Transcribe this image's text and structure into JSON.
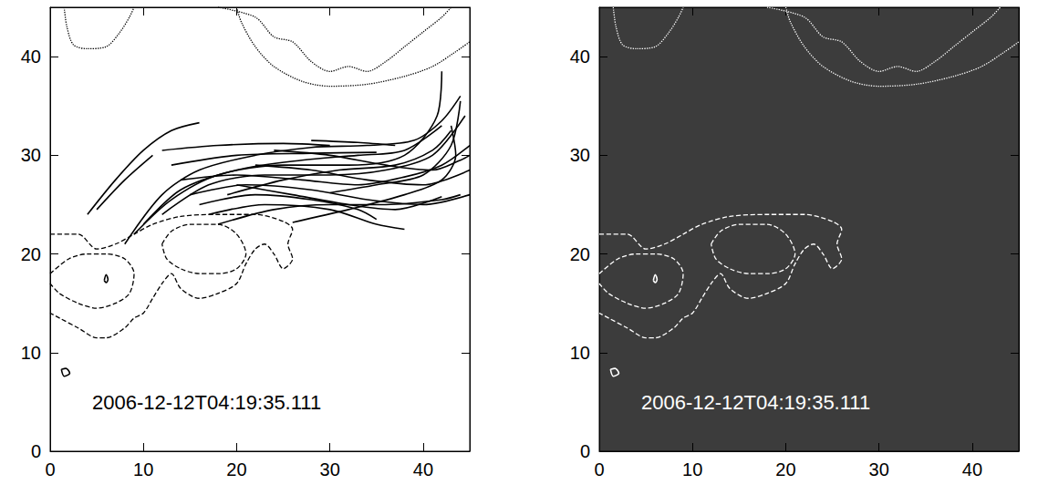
{
  "chart_data": [
    {
      "type": "line",
      "annotation": "2006-12-12T04:19:35.111",
      "xlim": [
        0,
        45
      ],
      "ylim": [
        0,
        45
      ],
      "xticks": [
        0,
        10,
        20,
        30,
        40
      ],
      "yticks": [
        0,
        10,
        20,
        30,
        40
      ],
      "series": [
        {
          "line_style": "dotted",
          "color": "#000000",
          "x": [
            1.5,
            1.8,
            2.5,
            4,
            6,
            7.5,
            8.5,
            9
          ],
          "values": [
            45,
            43,
            41.2,
            40.8,
            41,
            42.5,
            44,
            45
          ]
        },
        {
          "line_style": "dotted",
          "color": "#000000",
          "x": [
            20,
            20.5,
            22,
            24,
            27,
            30,
            34,
            38,
            41,
            43.5,
            45
          ],
          "values": [
            45,
            43.5,
            41,
            39,
            37.5,
            37,
            37.2,
            38,
            39,
            40.5,
            41.5
          ]
        },
        {
          "line_style": "dotted",
          "color": "#000000",
          "x": [
            18,
            22,
            24,
            26,
            28,
            30,
            32,
            34,
            36,
            38,
            40,
            42,
            43
          ],
          "values": [
            45,
            44,
            42,
            41.5,
            39.5,
            38.5,
            39,
            38.5,
            39.5,
            41,
            42.5,
            44,
            45
          ]
        },
        {
          "line_style": "dashed",
          "color": "#000000",
          "x": [
            0,
            3,
            5,
            7,
            9,
            11,
            14,
            18,
            22,
            25,
            26,
            25.5,
            26,
            25,
            24,
            23,
            22,
            21,
            20,
            18,
            16,
            14,
            13,
            12,
            11,
            10,
            9,
            8,
            6,
            5,
            3,
            1,
            0
          ],
          "values": [
            22,
            22,
            20.5,
            21,
            22,
            23,
            23.8,
            24,
            24,
            23.3,
            22.5,
            21,
            19.5,
            18.5,
            20,
            21,
            20.5,
            19,
            17,
            16,
            15.5,
            16.5,
            18,
            17,
            15.5,
            14,
            13.5,
            12.5,
            11.5,
            11.5,
            12.5,
            13.5,
            14
          ]
        },
        {
          "line_style": "dashed",
          "color": "#000000",
          "x": [
            12,
            13,
            15,
            18,
            20,
            21,
            20,
            18,
            16,
            14,
            12.5,
            12
          ],
          "values": [
            21,
            22.3,
            23,
            23,
            22,
            20,
            18.5,
            18,
            18,
            18.5,
            19.5,
            21
          ]
        },
        {
          "line_style": "dashed",
          "color": "#000000",
          "x": [
            0,
            2,
            4,
            6,
            8,
            9,
            8.5,
            7,
            5,
            3,
            1,
            0
          ],
          "values": [
            18,
            19.5,
            20,
            20,
            19.5,
            18,
            16,
            15,
            14.5,
            15,
            16,
            17
          ]
        },
        {
          "line_style": "solid",
          "color": "#000000",
          "x": [
            1.2,
            1.5,
            2.1,
            1.7,
            1.2
          ],
          "values": [
            8.3,
            7.6,
            7.9,
            8.4,
            8.3
          ]
        },
        {
          "line_style": "solid",
          "color": "#000000",
          "x": [
            5.8,
            6,
            6.2,
            6,
            5.8
          ],
          "values": [
            17.3,
            17.9,
            17.4,
            17.1,
            17.3
          ]
        },
        {
          "line_style": "solid",
          "color": "#000000",
          "x": [
            4,
            7,
            10,
            13,
            16
          ],
          "values": [
            24,
            27.5,
            30.5,
            32.5,
            33.3
          ]
        },
        {
          "line_style": "solid",
          "color": "#000000",
          "x": [
            5,
            8,
            11
          ],
          "values": [
            24.5,
            27.5,
            30
          ]
        },
        {
          "line_style": "solid",
          "color": "#000000",
          "x": [
            8,
            12,
            16,
            22,
            28,
            34,
            39,
            42,
            44
          ],
          "values": [
            21,
            26,
            28.5,
            30,
            30.8,
            31,
            31.5,
            33.5,
            36
          ]
        },
        {
          "line_style": "solid",
          "color": "#000000",
          "x": [
            9,
            13,
            18,
            25,
            32,
            38,
            41.5,
            42
          ],
          "values": [
            22,
            25.5,
            28,
            29,
            29,
            30,
            34,
            38.5
          ]
        },
        {
          "line_style": "solid",
          "color": "#000000",
          "x": [
            10,
            14,
            20,
            27,
            33,
            38,
            42
          ],
          "values": [
            23,
            26.5,
            28.5,
            29.5,
            30,
            30.5,
            33
          ]
        },
        {
          "line_style": "solid",
          "color": "#000000",
          "x": [
            12,
            17,
            23,
            30,
            36,
            41,
            44.5
          ],
          "values": [
            24,
            27,
            28,
            28,
            28.5,
            30,
            34
          ]
        },
        {
          "line_style": "solid",
          "color": "#000000",
          "x": [
            12,
            18,
            25,
            30
          ],
          "values": [
            30.5,
            31,
            31.2,
            31
          ]
        },
        {
          "line_style": "solid",
          "color": "#000000",
          "x": [
            13,
            20,
            28,
            35
          ],
          "values": [
            29,
            30,
            30.2,
            30.3
          ]
        },
        {
          "line_style": "solid",
          "color": "#000000",
          "x": [
            14,
            20,
            27,
            33,
            38,
            42,
            45
          ],
          "values": [
            27.5,
            28,
            27.5,
            27,
            27.8,
            29,
            31
          ]
        },
        {
          "line_style": "solid",
          "color": "#000000",
          "x": [
            15,
            21,
            28,
            34,
            40,
            45
          ],
          "values": [
            26,
            27,
            26.5,
            25.5,
            25,
            26
          ]
        },
        {
          "line_style": "solid",
          "color": "#000000",
          "x": [
            16,
            22,
            28,
            33,
            35
          ],
          "values": [
            25,
            26,
            25.5,
            24.5,
            23.5
          ]
        },
        {
          "line_style": "solid",
          "color": "#000000",
          "x": [
            17,
            23,
            30,
            35,
            38
          ],
          "values": [
            24,
            25,
            24.5,
            23,
            22.5
          ]
        },
        {
          "line_style": "solid",
          "color": "#000000",
          "x": [
            18,
            24,
            30,
            36,
            42,
            44
          ],
          "values": [
            23,
            24.5,
            25,
            25,
            25.5,
            26
          ]
        },
        {
          "line_style": "solid",
          "color": "#000000",
          "x": [
            20,
            26,
            32,
            37,
            42
          ],
          "values": [
            27,
            26,
            25,
            24.5,
            25.8
          ]
        },
        {
          "line_style": "solid",
          "color": "#000000",
          "x": [
            22,
            28,
            34,
            40,
            45
          ],
          "values": [
            29,
            28.5,
            27.5,
            27,
            28.5
          ]
        },
        {
          "line_style": "solid",
          "color": "#000000",
          "x": [
            24,
            30,
            36,
            41,
            44,
            45
          ],
          "values": [
            30.5,
            30,
            29,
            28.5,
            29.5,
            30
          ]
        },
        {
          "line_style": "solid",
          "color": "#000000",
          "x": [
            26,
            32,
            38,
            42,
            43.5,
            43
          ],
          "values": [
            23.2,
            24.5,
            26,
            27.5,
            30,
            33
          ]
        },
        {
          "line_style": "solid",
          "color": "#000000",
          "x": [
            28,
            33,
            37
          ],
          "values": [
            31.5,
            31.3,
            31
          ]
        },
        {
          "line_style": "solid",
          "color": "#000000",
          "x": [
            30,
            35,
            40,
            43,
            44
          ],
          "values": [
            26.2,
            27,
            28,
            31,
            35.5
          ]
        },
        {
          "line_style": "solid",
          "color": "#000000",
          "x": [
            19,
            25,
            31,
            37,
            41,
            43
          ],
          "values": [
            26,
            27.5,
            28.5,
            29,
            30.5,
            32.5
          ]
        }
      ]
    },
    {
      "type": "line",
      "annotation": "2006-12-12T04:19:35.111",
      "xlim": [
        0,
        45
      ],
      "ylim": [
        0,
        45
      ],
      "xticks": [
        0,
        10,
        20,
        30,
        40
      ],
      "yticks": [
        0,
        10,
        20,
        30,
        40
      ],
      "series": [
        {
          "line_style": "dotted",
          "color": "#ffffff",
          "x": [
            1.5,
            1.8,
            2.5,
            4,
            6,
            7.5,
            8.5,
            9
          ],
          "values": [
            45,
            43,
            41.2,
            40.8,
            41,
            42.5,
            44,
            45
          ]
        },
        {
          "line_style": "dotted",
          "color": "#ffffff",
          "x": [
            20,
            20.5,
            22,
            24,
            27,
            30,
            34,
            38,
            41,
            43.5,
            45
          ],
          "values": [
            45,
            43.5,
            41,
            39,
            37.5,
            37,
            37.2,
            38,
            39,
            40.5,
            41.5
          ]
        },
        {
          "line_style": "dotted",
          "color": "#ffffff",
          "x": [
            18,
            22,
            24,
            26,
            28,
            30,
            32,
            34,
            36,
            38,
            40,
            42,
            43
          ],
          "values": [
            45,
            44,
            42,
            41.5,
            39.5,
            38.5,
            39,
            38.5,
            39.5,
            41,
            42.5,
            44,
            45
          ]
        },
        {
          "line_style": "dashed",
          "color": "#ffffff",
          "x": [
            0,
            3,
            5,
            7,
            9,
            11,
            14,
            18,
            22,
            25,
            26,
            25.5,
            26,
            25,
            24,
            23,
            22,
            21,
            20,
            18,
            16,
            14,
            13,
            12,
            11,
            10,
            9,
            8,
            6,
            5,
            3,
            1,
            0
          ],
          "values": [
            22,
            22,
            20.5,
            21,
            22,
            23,
            23.8,
            24,
            24,
            23.3,
            22.5,
            21,
            19.5,
            18.5,
            20,
            21,
            20.5,
            19,
            17,
            16,
            15.5,
            16.5,
            18,
            17,
            15.5,
            14,
            13.5,
            12.5,
            11.5,
            11.5,
            12.5,
            13.5,
            14
          ]
        },
        {
          "line_style": "dashed",
          "color": "#ffffff",
          "x": [
            12,
            13,
            15,
            18,
            20,
            21,
            20,
            18,
            16,
            14,
            12.5,
            12
          ],
          "values": [
            21,
            22.3,
            23,
            23,
            22,
            20,
            18.5,
            18,
            18,
            18.5,
            19.5,
            21
          ]
        },
        {
          "line_style": "dashed",
          "color": "#ffffff",
          "x": [
            0,
            2,
            4,
            6,
            8,
            9,
            8.5,
            7,
            5,
            3,
            1,
            0
          ],
          "values": [
            18,
            19.5,
            20,
            20,
            19.5,
            18,
            16,
            15,
            14.5,
            15,
            16,
            17
          ]
        },
        {
          "line_style": "solid",
          "color": "#ffffff",
          "x": [
            1.2,
            1.5,
            2.1,
            1.7,
            1.2
          ],
          "values": [
            8.3,
            7.6,
            7.9,
            8.4,
            8.3
          ]
        },
        {
          "line_style": "solid",
          "color": "#ffffff",
          "x": [
            5.8,
            6,
            6.2,
            6,
            5.8
          ],
          "values": [
            17.3,
            17.9,
            17.4,
            17.1,
            17.3
          ]
        }
      ]
    }
  ]
}
